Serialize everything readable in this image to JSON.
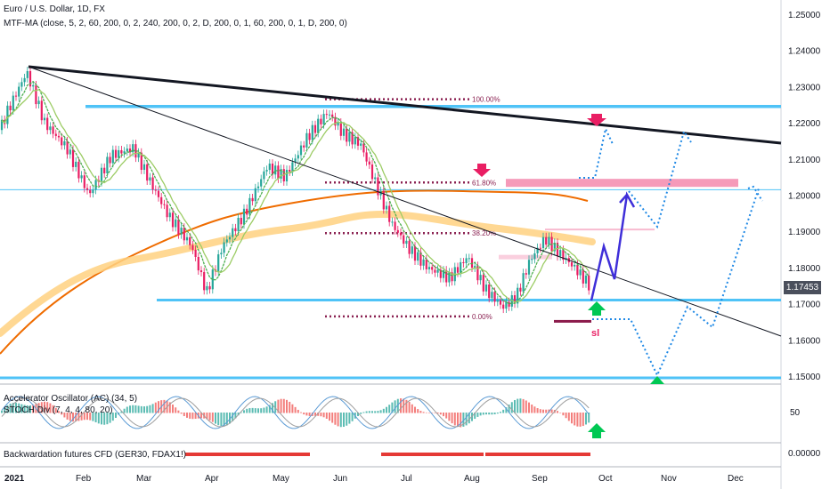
{
  "chart_data": {
    "type": "candlestick",
    "title": "Euro / U.S. Dollar, 1D, FX",
    "indicator_labels": {
      "mtf_ma": "MTF-MA (close, 5, 2, 60, 200, 0, 2, 240, 200, 0, 2, D, 200, 0, 1, 60, 200, 0, 1, D, 200, 0)",
      "ac": "Accelerator Oscillator (AC) (34, 5)",
      "stoch": "STOCH Div (7, 4, 4, 80, 20)",
      "backwardation": "Backwardation futures CFD (GER30, FDAX1!)"
    },
    "x_axis_labels": [
      "2021",
      "Feb",
      "Mar",
      "Apr",
      "May",
      "Jun",
      "Jul",
      "Aug",
      "Sep",
      "Oct",
      "Nov",
      "Dec"
    ],
    "y_axis": {
      "ticks": [
        "1.25000",
        "1.24000",
        "1.23000",
        "1.22000",
        "1.21000",
        "1.20000",
        "1.19000",
        "1.18000",
        "1.17000",
        "1.16000",
        "1.15000"
      ],
      "tick_values": [
        1.25,
        1.24,
        1.23,
        1.22,
        1.21,
        1.2,
        1.19,
        1.18,
        1.17,
        1.16,
        1.15
      ],
      "ylim": [
        1.1485,
        1.2515
      ],
      "current_price": "1.17453"
    },
    "fib_levels": [
      {
        "label": "100.00%",
        "value": 1.2265
      },
      {
        "label": "61.80%",
        "value": 1.2035
      },
      {
        "label": "38.20%",
        "value": 1.1895
      },
      {
        "label": "0.00%",
        "value": 1.1665
      }
    ],
    "horizontal_levels": [
      1.2245,
      1.2015,
      1.171,
      1.1495
    ],
    "annotations": {
      "stop_loss_label": "sl"
    },
    "ac_axis_tick": "50",
    "backwardation_axis_tick": "0.00000",
    "colors": {
      "up": "#26a69a",
      "down": "#e91e63",
      "ma_green": "#4caf50",
      "ma_lightgreen": "#9ccc65",
      "ma_orange": "#ef6c00",
      "ma_sand": "#ffd180",
      "level": "#4fc3f7",
      "trend": "#131722",
      "fib": "#8b2252",
      "projection": "#1e88e5",
      "path": "#3f2fd9",
      "pink_zone": "#f48fb1",
      "arrow_up": "#00c853",
      "arrow_down": "#e91e63"
    }
  }
}
